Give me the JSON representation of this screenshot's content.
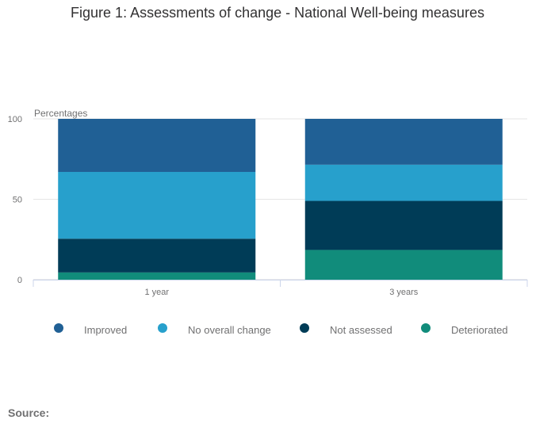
{
  "chart_data": {
    "type": "bar",
    "stacked": true,
    "title": "Figure 1: Assessments of change - National Well-being measures",
    "ylabel": "Percentages",
    "xlabel": "",
    "ylim": [
      0,
      100
    ],
    "yticks": [
      0,
      50,
      100
    ],
    "categories": [
      "1 year",
      "3 years"
    ],
    "series": [
      {
        "name": "Deteriorated",
        "values": [
          4.5,
          18.5
        ],
        "color": "#118c7b"
      },
      {
        "name": "Not assessed",
        "values": [
          21,
          30.5
        ],
        "color": "#003c57"
      },
      {
        "name": "No overall change",
        "values": [
          41.5,
          22.5
        ],
        "color": "#27a0cc"
      },
      {
        "name": "Improved",
        "values": [
          33,
          28.5
        ],
        "color": "#206095"
      }
    ],
    "legend_order": [
      "Improved",
      "No overall change",
      "Not assessed",
      "Deteriorated"
    ],
    "legend_position": "bottom"
  },
  "footer": {
    "source_label": "Source:"
  }
}
